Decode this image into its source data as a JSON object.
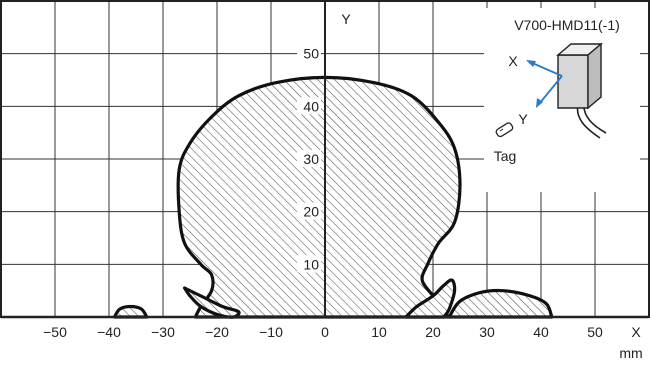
{
  "chart_data": {
    "type": "area",
    "title": "",
    "device_label": "V700-HMD11(-1)",
    "xlabel": "X",
    "xunit": "mm",
    "ylabel": "Y",
    "xlim": [
      -60,
      60
    ],
    "ylim": [
      0,
      60
    ],
    "grid": true,
    "x_ticks": [
      -50,
      -40,
      -30,
      -20,
      -10,
      0,
      10,
      20,
      30,
      40,
      50
    ],
    "y_ticks": [
      10,
      20,
      30,
      40,
      50
    ],
    "shading": "hatched",
    "regions": [
      {
        "part": "main-lobe",
        "points": [
          [
            -24,
            0
          ],
          [
            -23,
            2
          ],
          [
            -21,
            5
          ],
          [
            -21,
            8
          ],
          [
            -23,
            10
          ],
          [
            -26,
            14
          ],
          [
            -27,
            20
          ],
          [
            -27,
            28
          ],
          [
            -25,
            33
          ],
          [
            -21,
            38
          ],
          [
            -16,
            42
          ],
          [
            -9,
            44.5
          ],
          [
            0,
            45.5
          ],
          [
            9,
            44.5
          ],
          [
            16,
            42
          ],
          [
            21,
            37
          ],
          [
            24,
            32
          ],
          [
            25,
            25
          ],
          [
            24,
            18
          ],
          [
            21,
            14
          ],
          [
            19,
            10
          ],
          [
            18,
            7
          ],
          [
            20,
            4
          ],
          [
            22,
            1
          ],
          [
            23,
            0
          ]
        ]
      },
      {
        "part": "inner-left-side-lobe",
        "points": [
          [
            -26,
            5.5
          ],
          [
            -23,
            4
          ],
          [
            -19,
            2
          ],
          [
            -16,
            1
          ],
          [
            -17,
            0
          ],
          [
            -20,
            0.5
          ],
          [
            -23,
            2
          ],
          [
            -25,
            4
          ],
          [
            -26,
            5.5
          ]
        ]
      },
      {
        "part": "inner-right-side-lobe",
        "points": [
          [
            15,
            0
          ],
          [
            17,
            2
          ],
          [
            20,
            4
          ],
          [
            22,
            6
          ],
          [
            23.5,
            7
          ],
          [
            24,
            5
          ],
          [
            23,
            1.5
          ],
          [
            22,
            0
          ]
        ]
      },
      {
        "part": "outer-left-side-lobe",
        "points": [
          [
            -39,
            0
          ],
          [
            -38,
            1.5
          ],
          [
            -36,
            2
          ],
          [
            -34,
            1.5
          ],
          [
            -33,
            0
          ]
        ]
      },
      {
        "part": "outer-right-side-lobe",
        "points": [
          [
            23,
            0
          ],
          [
            25,
            3
          ],
          [
            29,
            4.7
          ],
          [
            33,
            5
          ],
          [
            38,
            4
          ],
          [
            41,
            2.5
          ],
          [
            42,
            0
          ]
        ]
      }
    ],
    "annotations": {
      "axis_x": "X",
      "axis_y": "Y",
      "tag": "Tag"
    }
  }
}
